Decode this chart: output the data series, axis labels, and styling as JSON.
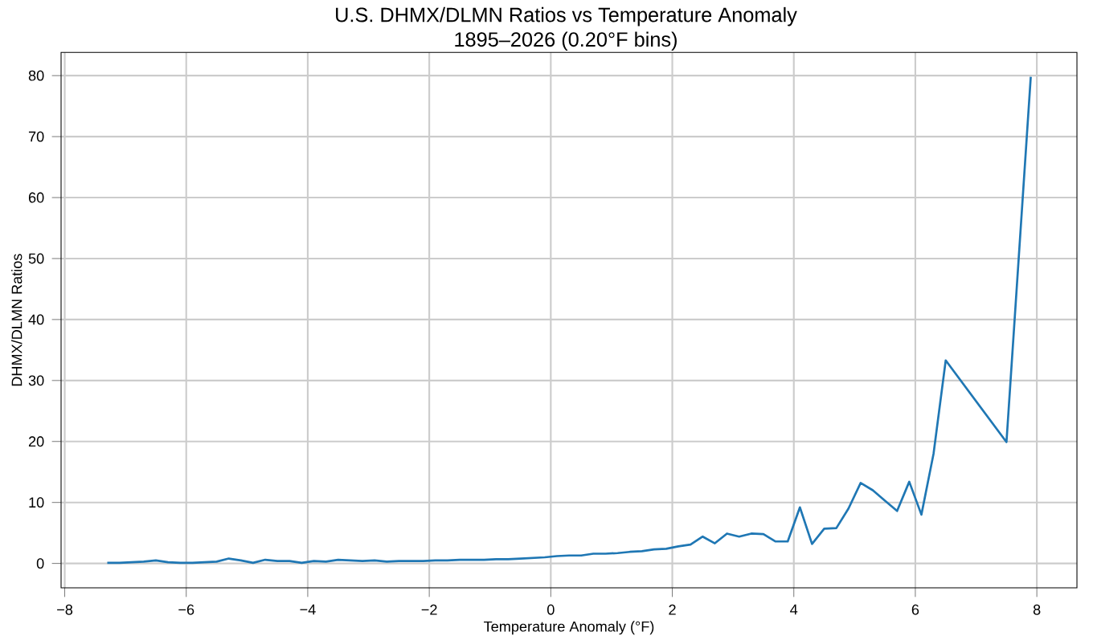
{
  "chart_data": {
    "type": "line",
    "title": "U.S. DHMX/DLMN Ratios vs Temperature Anomaly",
    "subtitle": "1895–2026 (0.20°F bins)",
    "xlabel": "Temperature Anomaly (°F)",
    "ylabel": "DHMX/DLMN Ratios",
    "x": [
      -7.3,
      -7.1,
      -6.9,
      -6.7,
      -6.5,
      -6.3,
      -6.1,
      -5.9,
      -5.7,
      -5.5,
      -5.3,
      -5.1,
      -4.9,
      -4.7,
      -4.5,
      -4.3,
      -4.1,
      -3.9,
      -3.7,
      -3.5,
      -3.3,
      -3.1,
      -2.9,
      -2.7,
      -2.5,
      -2.3,
      -2.1,
      -1.9,
      -1.7,
      -1.5,
      -1.3,
      -1.1,
      -0.9,
      -0.7,
      -0.5,
      -0.3,
      -0.1,
      0.1,
      0.3,
      0.5,
      0.7,
      0.9,
      1.1,
      1.3,
      1.5,
      1.7,
      1.9,
      2.1,
      2.3,
      2.5,
      2.7,
      2.9,
      3.1,
      3.3,
      3.5,
      3.7,
      3.9,
      4.1,
      4.3,
      4.5,
      4.7,
      4.9,
      5.1,
      5.3,
      5.5,
      5.7,
      5.9,
      6.1,
      6.3,
      6.5,
      7.5,
      7.9
    ],
    "series": [
      {
        "color": "#1f77b4",
        "values": [
          0.1,
          0.1,
          0.2,
          0.3,
          0.5,
          0.2,
          0.1,
          0.1,
          0.2,
          0.3,
          0.8,
          0.5,
          0.1,
          0.6,
          0.4,
          0.4,
          0.1,
          0.4,
          0.3,
          0.6,
          0.5,
          0.4,
          0.5,
          0.3,
          0.4,
          0.4,
          0.4,
          0.5,
          0.5,
          0.6,
          0.6,
          0.6,
          0.7,
          0.7,
          0.8,
          0.9,
          1.0,
          1.2,
          1.3,
          1.3,
          1.6,
          1.6,
          1.7,
          1.9,
          2.0,
          2.3,
          2.4,
          2.8,
          3.1,
          4.4,
          3.3,
          4.9,
          4.4,
          4.9,
          4.8,
          3.6,
          3.6,
          9.2,
          3.2,
          5.7,
          5.8,
          9.0,
          13.2,
          12.0,
          10.3,
          8.6,
          13.4,
          8.0,
          18.0,
          33.3,
          19.9,
          79.8
        ]
      }
    ],
    "xlim": [
      -8.06,
      8.66
    ],
    "ylim": [
      -4,
      83.8
    ],
    "xticks": [
      {
        "value": -8,
        "label": "−8"
      },
      {
        "value": -6,
        "label": "−6"
      },
      {
        "value": -4,
        "label": "−4"
      },
      {
        "value": -2,
        "label": "−2"
      },
      0,
      2,
      4,
      6,
      8
    ],
    "yticks": [
      0,
      10,
      20,
      30,
      40,
      50,
      60,
      70,
      80
    ],
    "grid": true,
    "line_style": "solid"
  }
}
